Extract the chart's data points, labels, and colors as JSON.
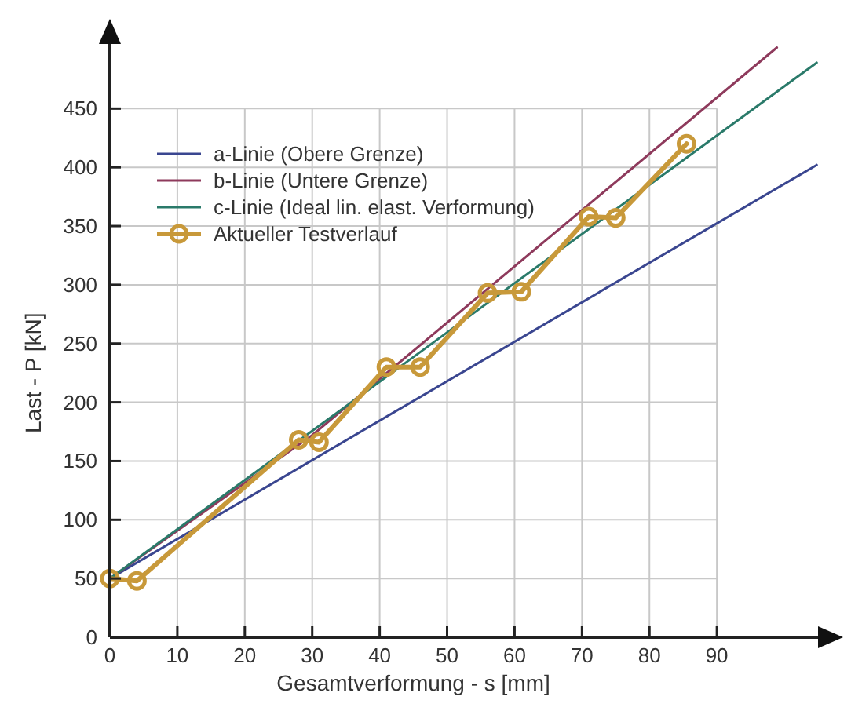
{
  "chart_data": {
    "type": "line",
    "xlabel": "Gesamtverformung - s [mm]",
    "ylabel": "Last - P [kN]",
    "xlim": [
      0,
      105
    ],
    "ylim": [
      0,
      505
    ],
    "xticks": [
      0,
      10,
      20,
      30,
      40,
      50,
      60,
      70,
      80,
      90
    ],
    "yticks": [
      0,
      50,
      100,
      150,
      200,
      250,
      300,
      350,
      400,
      450
    ],
    "grid": true,
    "legend": "top left",
    "series": [
      {
        "name": "a-Linie (Obere Grenze)",
        "color": "#3a4690",
        "x": [
          0,
          104.8
        ],
        "values": [
          50,
          402
        ],
        "marker": "none"
      },
      {
        "name": "b-Linie (Untere Grenze)",
        "color": "#8e3a5c",
        "x": [
          0,
          30,
          98.9
        ],
        "values": [
          50,
          172,
          502
        ],
        "marker": "none"
      },
      {
        "name": "c-Linie (Ideal lin. elast. Verformung)",
        "color": "#2a7a6a",
        "x": [
          0,
          104.8
        ],
        "values": [
          50,
          489
        ],
        "marker": "none"
      },
      {
        "name": "Aktueller Testverlauf",
        "color": "#c8993a",
        "x": [
          0,
          4,
          28,
          31,
          41,
          46,
          56,
          61,
          71,
          75,
          85.5
        ],
        "values": [
          50,
          48,
          168,
          166,
          230,
          230,
          293,
          294,
          358,
          357,
          420
        ],
        "marker": "circle"
      }
    ]
  }
}
